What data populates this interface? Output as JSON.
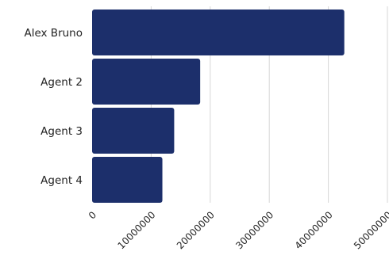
{
  "chart_data": {
    "type": "bar",
    "orientation": "horizontal",
    "categories": [
      "Alex Bruno",
      "Agent 2",
      "Agent 3",
      "Agent 4"
    ],
    "values": [
      42700000,
      18300000,
      13900000,
      11900000
    ],
    "xlim": [
      0,
      50000000
    ],
    "xticks": [
      0,
      10000000,
      20000000,
      30000000,
      40000000,
      50000000
    ],
    "xtick_labels": [
      "0",
      "10000000",
      "20000000",
      "30000000",
      "40000000",
      "50000000"
    ],
    "grid": "vertical",
    "bar_color": "#1c2f6b",
    "title": "",
    "xlabel": "",
    "ylabel": ""
  }
}
